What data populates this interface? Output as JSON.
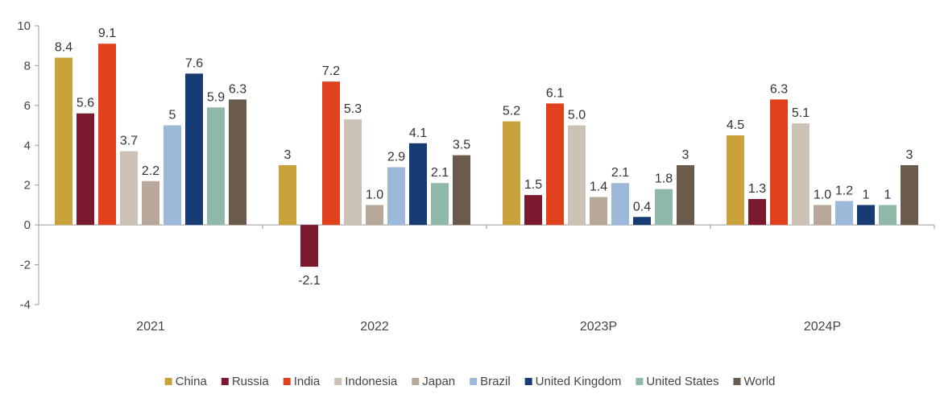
{
  "chart_data": {
    "type": "bar",
    "categories": [
      "2021",
      "2022",
      "2023P",
      "2024P"
    ],
    "series": [
      {
        "name": "China",
        "color": "#C9A23C",
        "values": [
          8.4,
          3,
          5.2,
          4.5
        ],
        "labels": [
          "8.4",
          "3",
          "5.2",
          "4.5"
        ]
      },
      {
        "name": "Russia",
        "color": "#7B1A2E",
        "values": [
          5.6,
          -2.1,
          1.5,
          1.3
        ],
        "labels": [
          "5.6",
          "-2.1",
          "1.5",
          "1.3"
        ]
      },
      {
        "name": "India",
        "color": "#E0401C",
        "values": [
          9.1,
          7.2,
          6.1,
          6.3
        ],
        "labels": [
          "9.1",
          "7.2",
          "6.1",
          "6.3"
        ]
      },
      {
        "name": "Indonesia",
        "color": "#CBC2B5",
        "values": [
          3.7,
          5.3,
          5.0,
          5.1
        ],
        "labels": [
          "3.7",
          "5.3",
          "5.0",
          "5.1"
        ]
      },
      {
        "name": "Japan",
        "color": "#B7A89A",
        "values": [
          2.2,
          1.0,
          1.4,
          1.0
        ],
        "labels": [
          "2.2",
          "1.0",
          "1.4",
          "1.0"
        ]
      },
      {
        "name": "Brazil",
        "color": "#9DB9DA",
        "values": [
          5,
          2.9,
          2.1,
          1.2
        ],
        "labels": [
          "5",
          "2.9",
          "2.1",
          "1.2"
        ]
      },
      {
        "name": "United Kingdom",
        "color": "#173B73",
        "values": [
          7.6,
          4.1,
          0.4,
          1
        ],
        "labels": [
          "7.6",
          "4.1",
          "0.4",
          "1"
        ]
      },
      {
        "name": "United States",
        "color": "#8FB8A8",
        "values": [
          5.9,
          2.1,
          1.8,
          1
        ],
        "labels": [
          "5.9",
          "2.1",
          "1.8",
          "1"
        ]
      },
      {
        "name": "World",
        "color": "#6B5B4C",
        "values": [
          6.3,
          3.5,
          3,
          3
        ],
        "labels": [
          "6.3",
          "3.5",
          "3",
          "3"
        ]
      }
    ],
    "yticks": [
      "10",
      "8",
      "6",
      "4",
      "2",
      "0",
      "-2",
      "-4"
    ],
    "ylim": [
      -4,
      10
    ],
    "grid": false,
    "legend_position": "bottom",
    "title": "",
    "xlabel": "",
    "ylabel": ""
  }
}
